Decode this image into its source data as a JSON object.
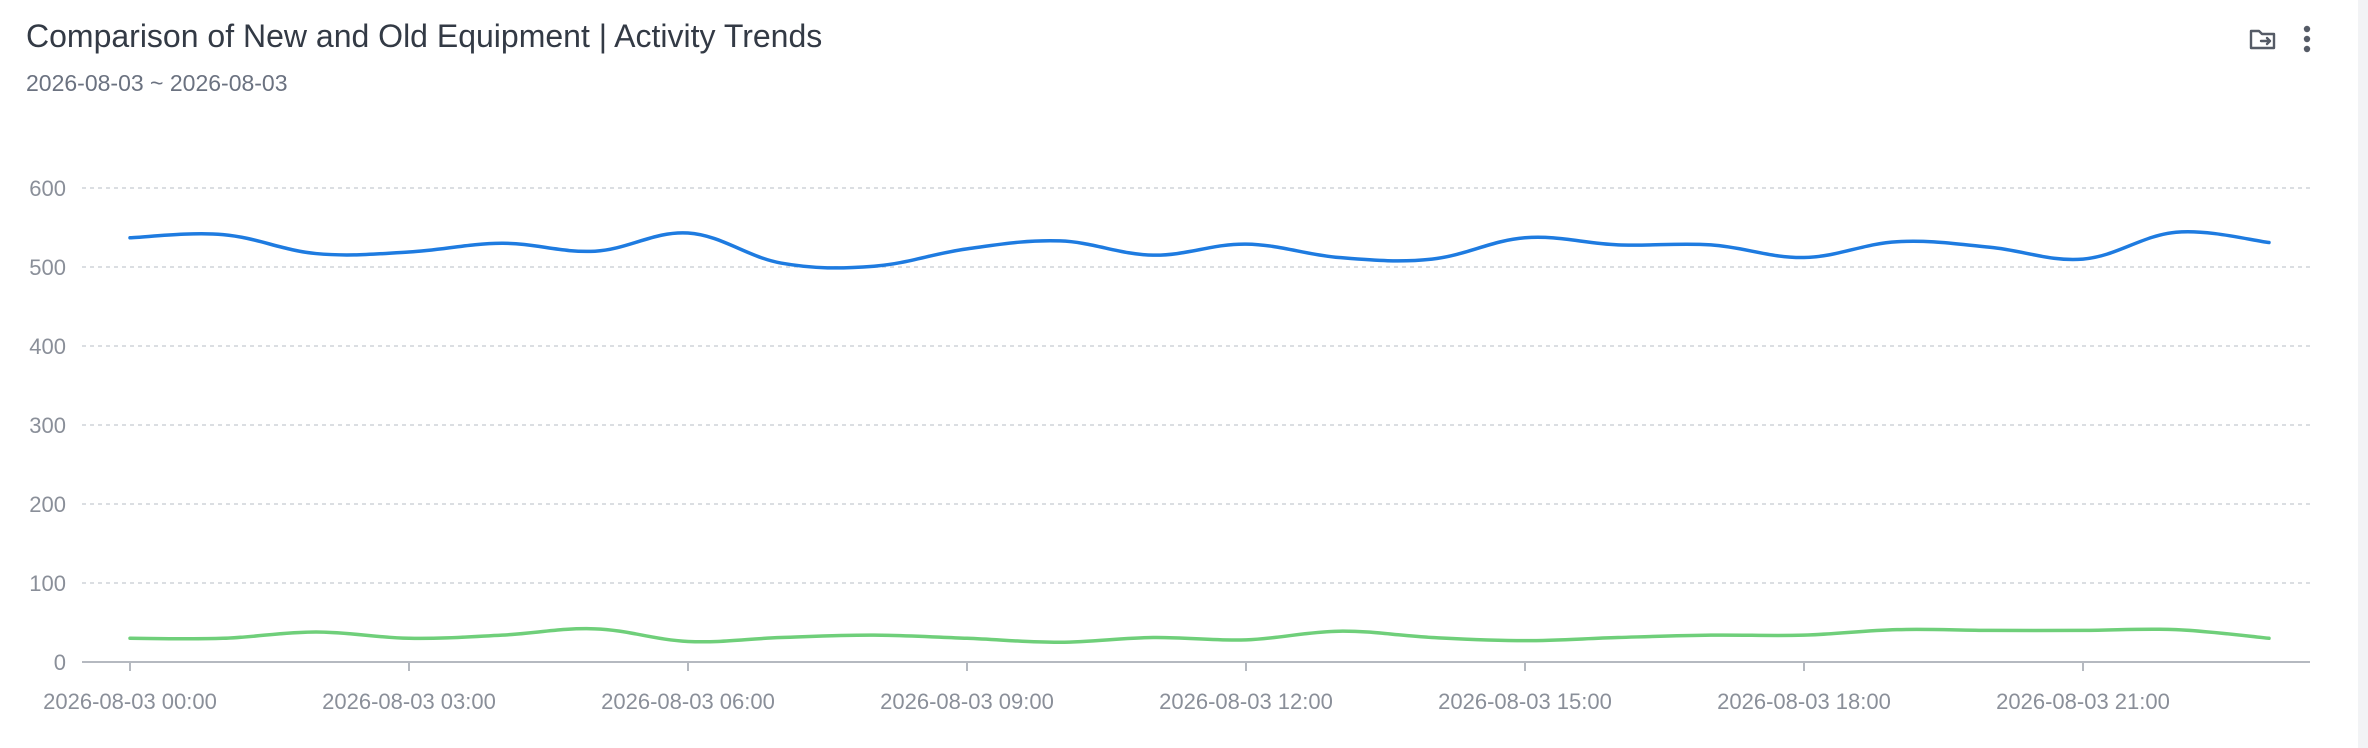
{
  "header": {
    "title": "Comparison of New and Old Equipment | Activity Trends",
    "date_range": "2026-08-03 ~ 2026-08-03",
    "actions": [
      {
        "name": "export-folder-icon"
      },
      {
        "name": "more-vertical-icon"
      }
    ]
  },
  "colors": {
    "series_blue": "#1e7be0",
    "series_green": "#6fcf7a",
    "grid": "#cfd3d9",
    "axis": "#b5b9c0"
  },
  "chart_data": {
    "type": "line",
    "smooth": true,
    "grid": true,
    "ylim": [
      0,
      600
    ],
    "y_ticks": [
      "0",
      "100",
      "200",
      "300",
      "400",
      "500",
      "600"
    ],
    "x_tick_labels": [
      "2026-08-03 00:00",
      "2026-08-03 03:00",
      "2026-08-03 06:00",
      "2026-08-03 09:00",
      "2026-08-03 12:00",
      "2026-08-03 15:00",
      "2026-08-03 18:00",
      "2026-08-03 21:00"
    ],
    "x": [
      "00:00",
      "01:00",
      "02:00",
      "03:00",
      "04:00",
      "05:00",
      "06:00",
      "07:00",
      "08:00",
      "09:00",
      "10:00",
      "11:00",
      "12:00",
      "13:00",
      "14:00",
      "15:00",
      "16:00",
      "17:00",
      "18:00",
      "19:00",
      "20:00",
      "21:00",
      "22:00",
      "23:00"
    ],
    "series": [
      {
        "values": [
          537,
          541,
          517,
          519,
          530,
          520,
          543,
          505,
          501,
          523,
          533,
          515,
          529,
          512,
          510,
          537,
          528,
          528,
          512,
          532,
          525,
          510,
          544,
          531
        ]
      },
      {
        "values": [
          30,
          30,
          38,
          30,
          34,
          42,
          26,
          31,
          34,
          30,
          25,
          31,
          28,
          39,
          31,
          27,
          31,
          34,
          34,
          41,
          40,
          40,
          41,
          30
        ]
      }
    ]
  }
}
